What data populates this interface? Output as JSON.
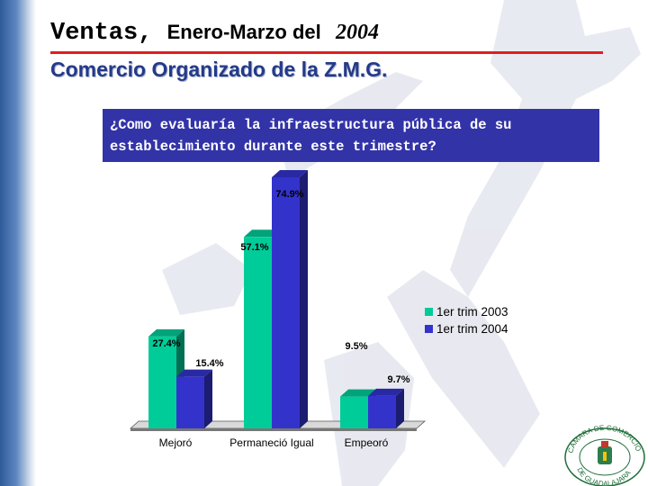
{
  "slide": {
    "title_main": "Ventas,",
    "title_range": "Enero-Marzo del",
    "title_year": "2004",
    "subtitle": "Comercio Organizado de la Z.M.G.",
    "question_line1": "¿Como evaluaría la infraestructura pública de su",
    "question_line2": "establecimiento durante este trimestre?"
  },
  "colors": {
    "series_2003": "#00cc99",
    "series_2004": "#3333cc",
    "title_rule": "#e01e1e",
    "subtitle": "#243a8a",
    "question_box": "#3333a8"
  },
  "chart_data": {
    "type": "bar",
    "categories": [
      "Mejoró",
      "Permaneció Igual",
      "Empeoró"
    ],
    "series": [
      {
        "name": "1er trim 2003",
        "values": [
          27.4,
          57.1,
          9.5
        ],
        "labels": [
          "27.4%",
          "57.1%",
          "9.5%"
        ]
      },
      {
        "name": "1er trim 2004",
        "values": [
          15.4,
          74.9,
          9.7
        ],
        "labels": [
          "15.4%",
          "74.9%",
          "9.7%"
        ]
      }
    ],
    "title": "",
    "xlabel": "",
    "ylabel": "",
    "ylim": [
      0,
      80
    ],
    "grid": false,
    "legend": "right",
    "style": "3d-clustered-bar"
  },
  "logo": {
    "text": "CAMARA DE COMERCIO DE GUADALAJARA"
  }
}
